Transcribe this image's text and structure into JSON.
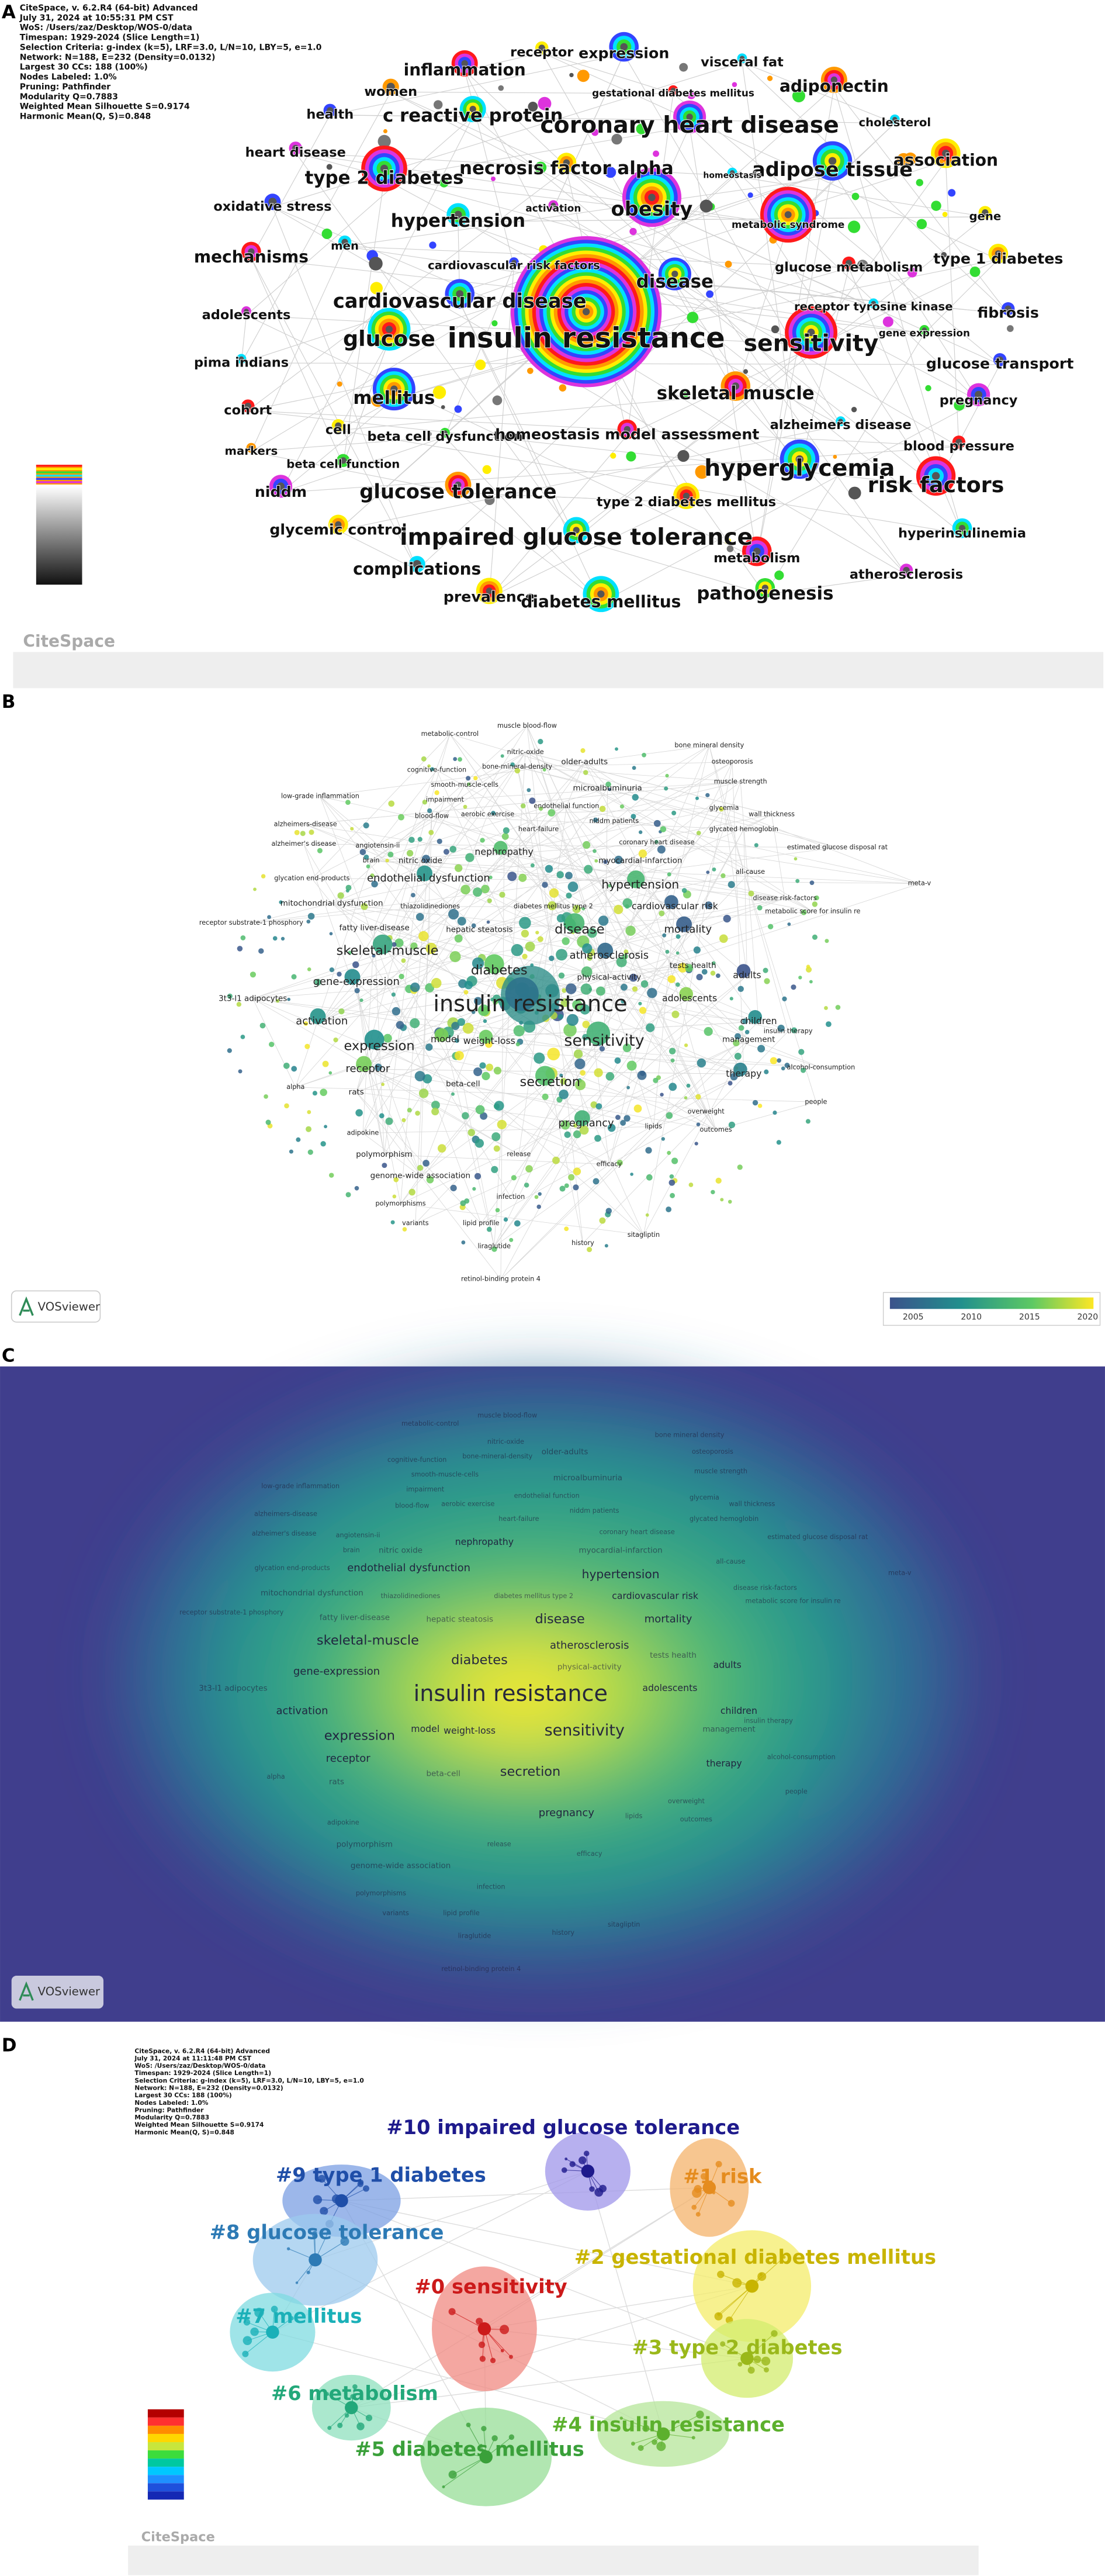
{
  "panels": [
    {
      "letter": "A",
      "logo": "CiteSpace",
      "info": [
        "CiteSpace, v. 6.2.R4 (64-bit) Advanced",
        "July 31, 2024 at 10:55:31 PM CST",
        "WoS: /Users/zaz/Desktop/WOS-0/data",
        "Timespan: 1929-2024 (Slice Length=1)",
        "Selection Criteria: g-index (k=5), LRF=3.0, L/N=10, LBY=5, e=1.0",
        "Network: N=188, E=232 (Density=0.0132)",
        "Largest 30 CCs: 188 (100%)",
        "Nodes Labeled: 1.0%",
        "Pruning: Pathfinder",
        "Modularity Q=0.7883",
        "Weighted Mean Silhouette S=0.9174",
        "Harmonic Mean(Q, S)=0.848"
      ],
      "nodes": [
        "receptor",
        "expression",
        "visceral fat",
        "inflammation",
        "adiponectin",
        "gestational diabetes mellitus",
        "women",
        "c reactive protein",
        "coronary heart disease",
        "cholesterol",
        "health",
        "heart disease",
        "association",
        "necrosis factor alpha",
        "adipose tissue",
        "type 2 diabetes",
        "homeostasis",
        "oxidative stress",
        "activation",
        "obesity",
        "metabolic syndrome",
        "gene",
        "hypertension",
        "men",
        "cardiovascular risk factors",
        "mechanisms",
        "glucose metabolism",
        "type 1 diabetes",
        "disease",
        "cardiovascular disease",
        "receptor tyrosine kinase",
        "fibrosis",
        "adolescents",
        "glucose",
        "insulin resistance",
        "sensitivity",
        "gene expression",
        "pima indians",
        "glucose transport",
        "skeletal muscle",
        "cohort",
        "mellitus",
        "cell",
        "beta cell dysfunction",
        "alzheimers disease",
        "pregnancy",
        "homeostasis model assessment",
        "blood pressure",
        "markers",
        "hyperglycemia",
        "beta cell function",
        "risk factors",
        "niddm",
        "glucose tolerance",
        "type 2 diabetes mellitus",
        "glycemic control",
        "impaired glucose tolerance",
        "hyperinsulinemia",
        "complications",
        "metabolism",
        "atherosclerosis",
        "prevalence",
        "diabetes mellitus",
        "pathogenesis"
      ]
    },
    {
      "letter": "B",
      "logo": "VOSviewer",
      "legend_ticks": [
        2005,
        2010,
        2015,
        2020
      ],
      "nodes": [
        "metabolic-control",
        "muscle blood-flow",
        "nitric-oxide",
        "bone mineral density",
        "older-adults",
        "osteoporosis",
        "cognitive-function",
        "bone-mineral-density",
        "smooth-muscle-cells",
        "microalbuminuria",
        "muscle strength",
        "low-grade inflammation",
        "impairment",
        "endothelial function",
        "blood-flow",
        "aerobic exercise",
        "glycemia",
        "wall thickness",
        "alzheimers-disease",
        "heart-failure",
        "niddm patients",
        "glycated hemoglobin",
        "alzheimer's disease",
        "angiotensin-ii",
        "nephropathy",
        "coronary heart disease",
        "estimated glucose disposal rat",
        "brain",
        "nitric oxide",
        "myocardial-infarction",
        "glycation end-products",
        "endothelial dysfunction",
        "hypertension",
        "all-cause",
        "mitochondrial dysfunction",
        "thiazolidinediones",
        "diabetes mellitus type 2",
        "cardiovascular risk",
        "disease risk-factors",
        "metabolic score for insulin re",
        "receptor substrate-1 phosphory",
        "fatty liver-disease",
        "hepatic steatosis",
        "disease",
        "mortality",
        "skeletal-muscle",
        "atherosclerosis",
        "adults",
        "diabetes",
        "physical-activity",
        "tests health",
        "gene-expression",
        "insulin resistance",
        "adolescents",
        "children",
        "3t3-l1 adipocytes",
        "activation",
        "expression",
        "sensitivity",
        "management",
        "receptor",
        "model",
        "weight-loss",
        "secretion",
        "therapy",
        "beta-cell",
        "pregnancy",
        "alpha",
        "rats",
        "people",
        "overweight",
        "adipokine",
        "polymorphism",
        "lipids",
        "outcomes",
        "release",
        "genome-wide association",
        "efficacy",
        "infection",
        "polymorphisms",
        "variants",
        "lipid profile",
        "history",
        "liraglutide",
        "sitagliptin",
        "retinol-binding protein 4",
        "meta-v",
        "alcohol-consumption",
        "insulin therapy"
      ]
    },
    {
      "letter": "C",
      "logo": "VOSviewer"
    },
    {
      "letter": "D",
      "logo": "CiteSpace",
      "info": [
        "CiteSpace, v. 6.2.R4 (64-bit) Advanced",
        "July 31, 2024 at 11:11:48 PM CST",
        "WoS: /Users/zaz/Desktop/WOS-0/data",
        "Timespan: 1929-2024 (Slice Length=1)",
        "Selection Criteria: g-index (k=5), LRF=3.0, L/N=10, LBY=5, e=1.0",
        "Network: N=188, E=232 (Density=0.0132)",
        "Largest 30 CCs: 188 (100%)",
        "Nodes Labeled: 1.0%",
        "Pruning: Pathfinder",
        "Modularity Q=0.7883",
        "Weighted Mean Silhouette S=0.9174",
        "Harmonic Mean(Q, S)=0.848"
      ],
      "clusters": [
        "#10 impaired glucose tolerance",
        "#1 risk",
        "#9 type 1 diabetes",
        "#8 glucose tolerance",
        "#2 gestational diabetes mellitus",
        "#0 sensitivity",
        "#7 mellitus",
        "#3 type 2 diabetes",
        "#6 metabolism",
        "#4 insulin resistance",
        "#5 diabetes mellitus"
      ]
    }
  ]
}
